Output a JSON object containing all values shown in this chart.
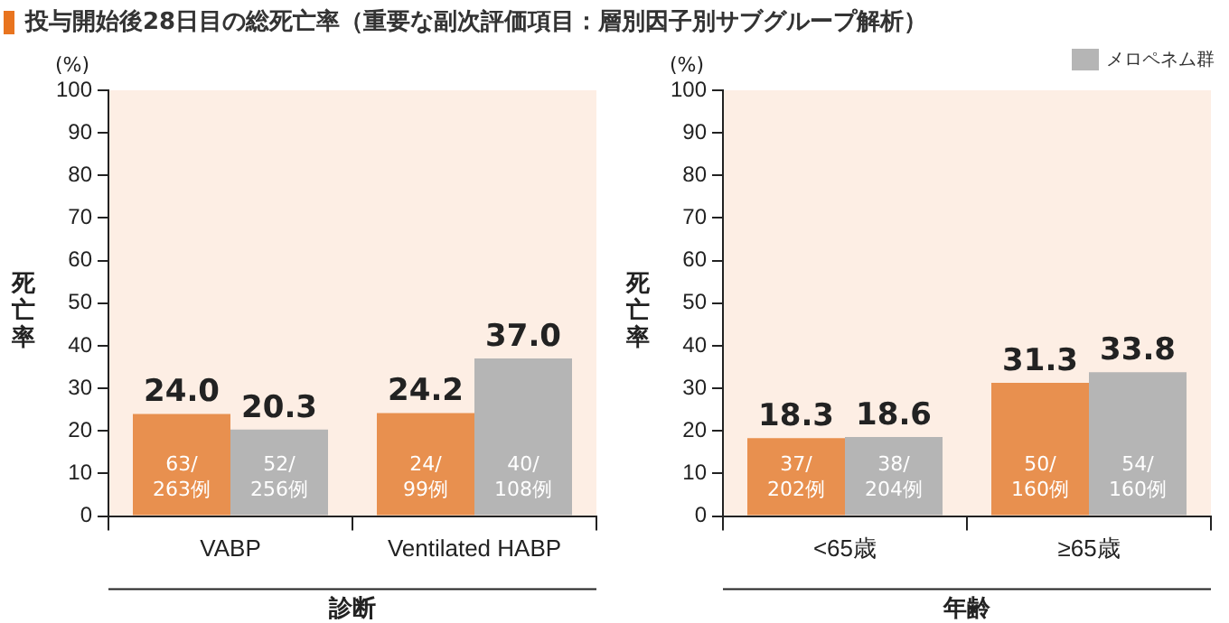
{
  "chart_data": [
    {
      "type": "bar",
      "title": "投与開始後28日目の総死亡率（重要な副次評価項目：層別因子別サブグループ解析）",
      "categories": [
        "VABP",
        "Ventilated HABP"
      ],
      "xlabel": "診断",
      "ylabel": "死亡率",
      "annotations": [
        "(%)",
        {
          "text": "63/263例",
          "x": "VABP"
        },
        {
          "text": "52/256例",
          "x": "VABP"
        },
        {
          "text": "24/99例",
          "x": "Ventilated HABP"
        },
        {
          "text": "40/108例",
          "x": "Ventilated HABP"
        }
      ],
      "series": [
        {
          "color": "#e8904f",
          "values": [
            24.0,
            24.2
          ],
          "value_labels": [
            "24.0",
            "24.2"
          ]
        },
        {
          "color": "#b5b5b5",
          "values": [
            20.3,
            37.0
          ],
          "value_labels": [
            "20.3",
            "37.0"
          ]
        }
      ],
      "ylim": [
        0,
        100
      ],
      "yticks": [
        0,
        10,
        20,
        30,
        40,
        50,
        60,
        70,
        80,
        90,
        100
      ],
      "grid": false,
      "legend": false
    },
    {
      "type": "bar",
      "categories": [
        "<65歳",
        "≥65歳"
      ],
      "xlabel": "年齢",
      "ylabel": "死亡率",
      "annotations": [
        "(%)",
        {
          "text": "37/202例",
          "x": "<65歳"
        },
        {
          "text": "38/204例",
          "x": "<65歳"
        },
        {
          "text": "50/160例",
          "x": "≥65歳"
        },
        {
          "text": "54/160例",
          "x": "≥65歳"
        }
      ],
      "series": [
        {
          "color": "#e8904f",
          "values": [
            18.3,
            31.3
          ],
          "value_labels": [
            "18.3",
            "31.3"
          ]
        },
        {
          "name": "メロペネム群",
          "color": "#b5b5b5",
          "values": [
            18.6,
            33.8
          ],
          "value_labels": [
            "18.6",
            "33.8"
          ]
        }
      ],
      "ylim": [
        0,
        100
      ],
      "yticks": [
        0,
        10,
        20,
        30,
        40,
        50,
        60,
        70,
        80,
        90,
        100
      ],
      "grid": false,
      "legend": "top right"
    }
  ]
}
